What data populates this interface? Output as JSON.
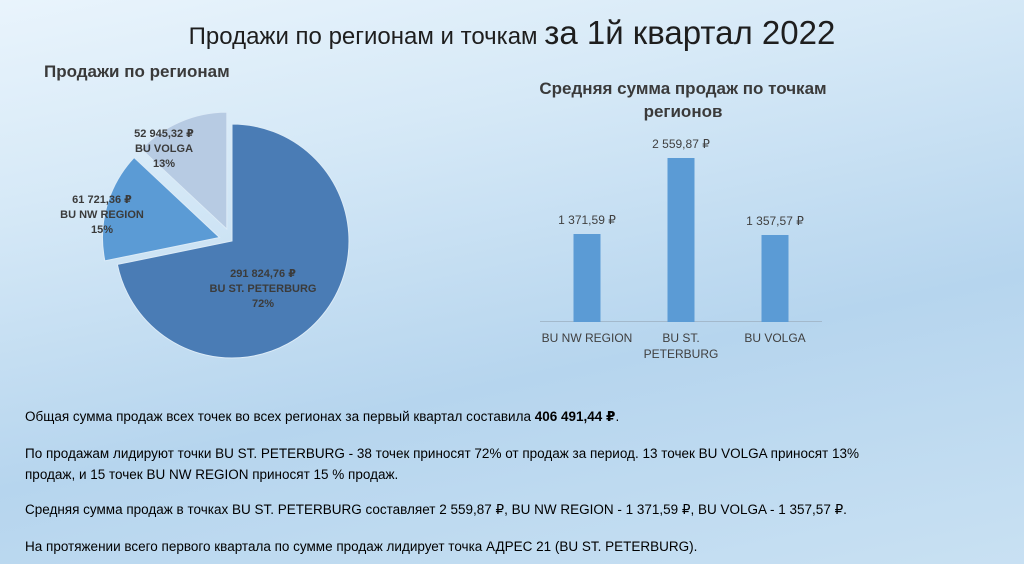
{
  "title": {
    "part1": "Продажи по регионам и точкам ",
    "part2": "за 1й квартал 2022"
  },
  "pie": {
    "title": "Продажи по регионам",
    "labels": [
      {
        "value": "291 824,76 ₽",
        "name": "BU ST. PETERBURG",
        "pct": "72%"
      },
      {
        "value": "61 721,36 ₽",
        "name": "BU NW REGION",
        "pct": "15%"
      },
      {
        "value": "52 945,32 ₽",
        "name": "BU VOLGA",
        "pct": "13%"
      }
    ]
  },
  "bar": {
    "title": "Средняя сумма продаж по точкам регионов",
    "items": [
      {
        "label": "BU NW REGION",
        "value_label": "1 371,59 ₽"
      },
      {
        "label": "BU ST. PETERBURG",
        "value_label": "2 559,87 ₽"
      },
      {
        "label": "BU VOLGA",
        "value_label": "1 357,57 ₽"
      }
    ]
  },
  "chart_data": [
    {
      "type": "pie",
      "title": "Продажи по регионам",
      "categories": [
        "BU ST. PETERBURG",
        "BU NW REGION",
        "BU VOLGA"
      ],
      "values": [
        291824.76,
        61721.36,
        52945.32
      ],
      "percents": [
        72,
        15,
        13
      ],
      "value_labels": [
        "291 824,76 ₽",
        "61 721,36 ₽",
        "52 945,32 ₽"
      ],
      "unit": "₽",
      "colors": [
        "#4a7cb5",
        "#5b9bd5",
        "#b7cbe3"
      ],
      "start_angle_deg": 0,
      "direction": "clockwise",
      "exploded": [
        false,
        true,
        true
      ]
    },
    {
      "type": "bar",
      "title": "Средняя сумма продаж по точкам регионов",
      "categories": [
        "BU NW REGION",
        "BU ST. PETERBURG",
        "BU VOLGA"
      ],
      "values": [
        1371.59,
        2559.87,
        1357.57
      ],
      "value_labels": [
        "1 371,59 ₽",
        "2 559,87 ₽",
        "1 357,57 ₽"
      ],
      "unit": "₽",
      "bar_color": "#5b9bd5",
      "ylim": [
        0,
        2600
      ],
      "grid": false,
      "legend": "none"
    }
  ],
  "summary": {
    "p1_text": "Общая сумма продаж всех точек во всех регионах за первый квартал составила ",
    "p1_bold": "406 491,44 ₽",
    "p1_end": ".",
    "p2": "По продажам лидируют точки BU ST. PETERBURG - 38 точек приносят 72% от продаж за период. 13 точек BU VOLGA приносят 13% продаж, и 15 точек BU NW REGION  приносят 15 % продаж.",
    "p3": "Средняя сумма продаж в точках BU ST. PETERBURG составляет 2 559,87 ₽, BU NW REGION - 1 371,59 ₽, BU VOLGA - 1 357,57 ₽.",
    "p4": "На протяжении всего первого квартала по сумме продаж лидирует точка АДРЕС 21 (BU ST. PETERBURG)."
  }
}
